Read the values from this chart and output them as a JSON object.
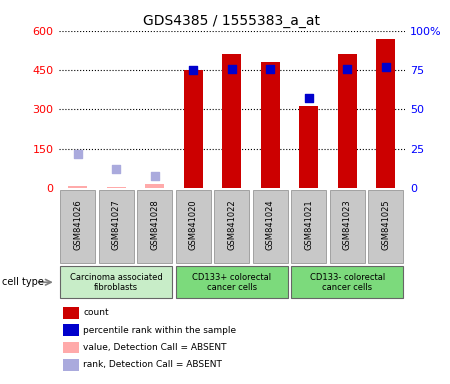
{
  "title": "GDS4385 / 1555383_a_at",
  "samples": [
    "GSM841026",
    "GSM841027",
    "GSM841028",
    "GSM841020",
    "GSM841022",
    "GSM841024",
    "GSM841021",
    "GSM841023",
    "GSM841025"
  ],
  "counts": [
    10,
    5,
    15,
    450,
    510,
    480,
    315,
    510,
    570
  ],
  "percentile_ranks": [
    null,
    null,
    null,
    75,
    76,
    76,
    57,
    76,
    77
  ],
  "absent_counts": [
    10,
    5,
    15,
    null,
    null,
    null,
    null,
    null,
    null
  ],
  "absent_ranks": [
    22,
    12,
    8,
    null,
    null,
    null,
    null,
    null,
    null
  ],
  "is_absent": [
    true,
    true,
    true,
    false,
    false,
    false,
    false,
    false,
    false
  ],
  "cell_types": [
    {
      "label": "Carcinoma associated\nfibroblasts",
      "start": 0,
      "end": 2,
      "color": "#c8edc8"
    },
    {
      "label": "CD133+ colorectal\ncancer cells",
      "start": 3,
      "end": 5,
      "color": "#7cda7c"
    },
    {
      "label": "CD133- colorectal\ncancer cells",
      "start": 6,
      "end": 8,
      "color": "#7cda7c"
    }
  ],
  "left_ylim": [
    0,
    600
  ],
  "left_yticks": [
    0,
    150,
    300,
    450,
    600
  ],
  "right_ylim": [
    0,
    100
  ],
  "right_yticks": [
    0,
    25,
    50,
    75,
    100
  ],
  "right_yticklabels": [
    "0",
    "25",
    "50",
    "75",
    "100%"
  ],
  "bar_color": "#cc0000",
  "absent_bar_color": "#ffaaaa",
  "dot_color": "#0000cc",
  "absent_dot_color": "#aaaadd",
  "bar_width": 0.5,
  "xtick_box_color": "#c8c8c8",
  "grid_color": "black",
  "legend_items": [
    {
      "color": "#cc0000",
      "label": "count"
    },
    {
      "color": "#0000cc",
      "label": "percentile rank within the sample"
    },
    {
      "color": "#ffaaaa",
      "label": "value, Detection Call = ABSENT"
    },
    {
      "color": "#aaaadd",
      "label": "rank, Detection Call = ABSENT"
    }
  ]
}
